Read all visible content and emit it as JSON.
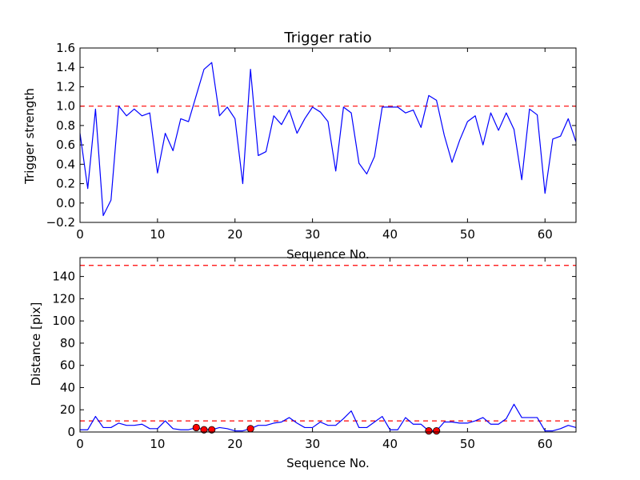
{
  "chart_data": [
    {
      "type": "line",
      "title": "Trigger ratio",
      "xlabel": "Sequence No.",
      "ylabel": "Trigger strength",
      "xlim": [
        0,
        64
      ],
      "ylim": [
        -0.2,
        1.6
      ],
      "xticks": [
        "0",
        "10",
        "20",
        "30",
        "40",
        "50",
        "60"
      ],
      "yticks": [
        "−0.2",
        "0.0",
        "0.2",
        "0.4",
        "0.6",
        "0.8",
        "1.0",
        "1.2",
        "1.4",
        "1.6"
      ],
      "threshold": 1.0,
      "grid": false,
      "colors": {
        "line": "#0000ff",
        "threshold": "#ff0000"
      },
      "series": [
        {
          "x": [
            0,
            1,
            2,
            3,
            4,
            5,
            6,
            7,
            8,
            9,
            10,
            11,
            12,
            13,
            14,
            15,
            16,
            17,
            18,
            19,
            20,
            21,
            22,
            23,
            24,
            25,
            26,
            27,
            28,
            29,
            30,
            31,
            32,
            33,
            34,
            35,
            36,
            37,
            38,
            39,
            40,
            41,
            42,
            43,
            44,
            45,
            46,
            47,
            48,
            49,
            50,
            51,
            52,
            53,
            54,
            55,
            56,
            57,
            58,
            59,
            60,
            61,
            62,
            63,
            64
          ],
          "y": [
            0.72,
            0.15,
            0.97,
            -0.13,
            0.03,
            1.0,
            0.9,
            0.97,
            0.9,
            0.93,
            0.31,
            0.72,
            0.54,
            0.87,
            0.84,
            1.11,
            1.38,
            1.45,
            0.9,
            0.99,
            0.87,
            0.2,
            1.38,
            0.49,
            0.53,
            0.9,
            0.81,
            0.96,
            0.72,
            0.87,
            0.99,
            0.94,
            0.84,
            0.33,
            0.99,
            0.93,
            0.41,
            0.3,
            0.48,
            0.99,
            0.99,
            0.99,
            0.93,
            0.96,
            0.78,
            1.11,
            1.06,
            0.7,
            0.42,
            0.65,
            0.84,
            0.9,
            0.6,
            0.93,
            0.75,
            0.93,
            0.76,
            0.24,
            0.97,
            0.91,
            0.1,
            0.66,
            0.69,
            0.87,
            0.63
          ]
        }
      ]
    },
    {
      "type": "line",
      "title": "",
      "xlabel": "Sequence No.",
      "ylabel": "Distance [pix]",
      "xlim": [
        0,
        64
      ],
      "ylim": [
        0,
        157
      ],
      "xticks": [
        "0",
        "10",
        "20",
        "30",
        "40",
        "50",
        "60"
      ],
      "yticks": [
        "0",
        "20",
        "40",
        "60",
        "80",
        "100",
        "120",
        "140"
      ],
      "thresholds": [
        10,
        150
      ],
      "grid": false,
      "colors": {
        "line": "#0000ff",
        "threshold": "#ff0000",
        "marker": "#ff0000"
      },
      "series": [
        {
          "x": [
            0,
            1,
            2,
            3,
            4,
            5,
            6,
            7,
            8,
            9,
            10,
            11,
            12,
            13,
            14,
            15,
            16,
            17,
            18,
            19,
            20,
            21,
            22,
            23,
            24,
            25,
            26,
            27,
            28,
            29,
            30,
            31,
            32,
            33,
            34,
            35,
            36,
            37,
            38,
            39,
            40,
            41,
            42,
            43,
            44,
            45,
            46,
            47,
            48,
            49,
            50,
            51,
            52,
            53,
            54,
            55,
            56,
            57,
            58,
            59,
            60,
            61,
            62,
            63,
            64
          ],
          "y": [
            2,
            2,
            14,
            4,
            4,
            8,
            6,
            6,
            7,
            3,
            3,
            10,
            3,
            2,
            2,
            4,
            2,
            2,
            4,
            3,
            1,
            1,
            3,
            6,
            6,
            8,
            9,
            13,
            8,
            4,
            4,
            9,
            6,
            6,
            12,
            19,
            4,
            4,
            9,
            14,
            2,
            2,
            13,
            7,
            7,
            1,
            1,
            9,
            9,
            8,
            8,
            10,
            13,
            7,
            7,
            12,
            25,
            13,
            13,
            13,
            1,
            1,
            3,
            6,
            4
          ]
        }
      ],
      "markers": {
        "x": [
          15,
          16,
          17,
          22,
          45,
          46
        ],
        "y": [
          4,
          2,
          2,
          3,
          1,
          1
        ]
      }
    }
  ]
}
